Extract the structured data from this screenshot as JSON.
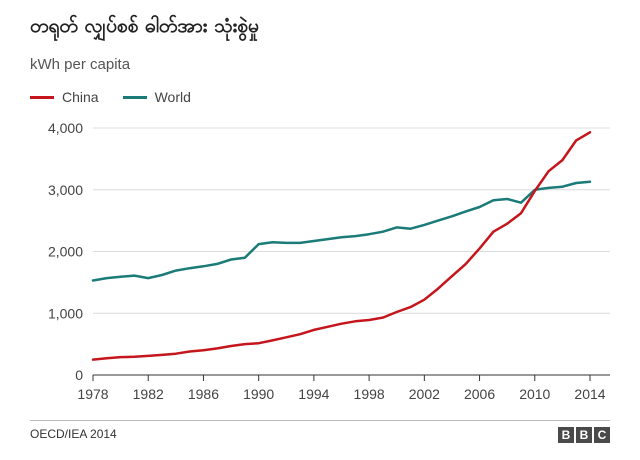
{
  "title": "တရုတ် လျှပ်စစ် ဓါတ်အား သုံးစွဲမှု",
  "subtitle": "kWh per capita",
  "source": "OECD/IEA 2014",
  "logo_letters": [
    "B",
    "B",
    "C"
  ],
  "colors": {
    "china": "#c4161c",
    "world": "#1a7b78",
    "grid": "#dcdcdc",
    "axis": "#333333"
  },
  "chart_data": {
    "type": "line",
    "x": [
      1978,
      1979,
      1980,
      1981,
      1982,
      1983,
      1984,
      1985,
      1986,
      1987,
      1988,
      1989,
      1990,
      1991,
      1992,
      1993,
      1994,
      1995,
      1996,
      1997,
      1998,
      1999,
      2000,
      2001,
      2002,
      2003,
      2004,
      2005,
      2006,
      2007,
      2008,
      2009,
      2010,
      2011,
      2012,
      2013,
      2014
    ],
    "series": [
      {
        "name": "China",
        "color": "#c4161c",
        "values": [
          250,
          270,
          290,
          295,
          310,
          325,
          345,
          380,
          400,
          430,
          470,
          500,
          515,
          560,
          610,
          660,
          730,
          780,
          830,
          870,
          890,
          930,
          1020,
          1100,
          1220,
          1400,
          1600,
          1800,
          2050,
          2320,
          2450,
          2620,
          2980,
          3300,
          3480,
          3800,
          3930
        ]
      },
      {
        "name": "World",
        "color": "#1a7b78",
        "values": [
          1530,
          1570,
          1590,
          1610,
          1570,
          1620,
          1690,
          1730,
          1760,
          1800,
          1870,
          1900,
          2120,
          2150,
          2140,
          2140,
          2170,
          2200,
          2230,
          2250,
          2280,
          2320,
          2390,
          2370,
          2430,
          2500,
          2570,
          2650,
          2720,
          2830,
          2850,
          2790,
          3000,
          3030,
          3050,
          3110,
          3130
        ]
      }
    ],
    "xticks": [
      "1978",
      "1982",
      "1986",
      "1990",
      "1994",
      "1998",
      "2002",
      "2006",
      "2010",
      "2014"
    ],
    "yticks": [
      {
        "value": 0,
        "label": "0"
      },
      {
        "value": 1000,
        "label": "1,000"
      },
      {
        "value": 2000,
        "label": "2,000"
      },
      {
        "value": 3000,
        "label": "3,000"
      },
      {
        "value": 4000,
        "label": "4,000"
      }
    ],
    "xlim": [
      1978,
      2014
    ],
    "ylim": [
      0,
      4000
    ],
    "grid": true,
    "legend_position": "top-left"
  }
}
